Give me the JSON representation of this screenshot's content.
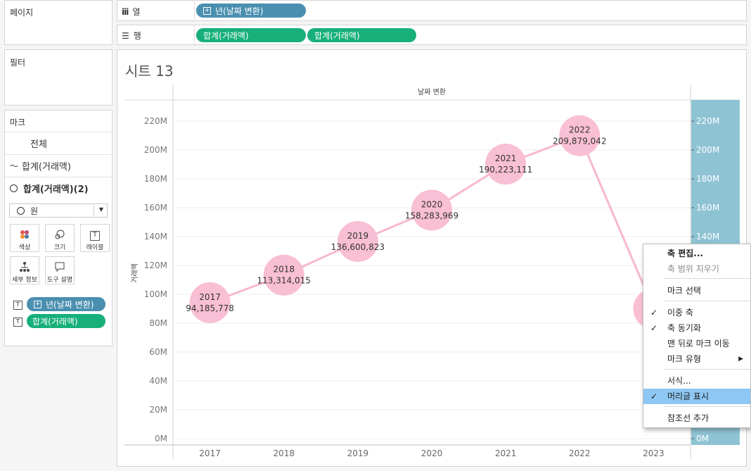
{
  "panels": {
    "pages": "페이지",
    "filters": "필터",
    "marks": "마크"
  },
  "shelves": {
    "columns": {
      "label": "열",
      "icon": "columns-icon",
      "pill": "년(날짜 변환)"
    },
    "rows": {
      "label": "행",
      "icon": "rows-icon",
      "pills": [
        "합계(거래액)",
        "합계(거래액)"
      ]
    }
  },
  "marks": {
    "all": "전체",
    "line_card": "합계(거래액)",
    "circle_card": "합계(거래액)(2)",
    "mark_type": "원",
    "buttons": [
      "색상",
      "크기",
      "레이블",
      "세부 정보",
      "도구 설명"
    ],
    "fields": [
      "년(날짜 변환)",
      "합계(거래액)"
    ]
  },
  "sheet": {
    "title": "시트 13",
    "header": "날짜 변환",
    "ylabel": "거래액"
  },
  "chart_data": {
    "type": "line",
    "categories": [
      "2017",
      "2018",
      "2019",
      "2020",
      "2021",
      "2022",
      "2023"
    ],
    "series": [
      {
        "values": [
          94185778,
          113314015,
          136600823,
          158283969,
          190223111,
          209879042,
          90000000
        ]
      }
    ],
    "data_labels": [
      {
        "year": "2017",
        "value": "94,185,778"
      },
      {
        "year": "2018",
        "value": "113,314,015"
      },
      {
        "year": "2019",
        "value": "136,600,823"
      },
      {
        "year": "2020",
        "value": "158,283,969"
      },
      {
        "year": "2021",
        "value": "190,223,111"
      },
      {
        "year": "2022",
        "value": "209,879,042"
      },
      {
        "year": "2023",
        "value": "90,"
      }
    ],
    "yticks": [
      "0M",
      "20M",
      "40M",
      "60M",
      "80M",
      "100M",
      "120M",
      "140M",
      "160M",
      "180M",
      "200M",
      "220M"
    ],
    "ylim": [
      0,
      230000000
    ],
    "colors": {
      "line": "#f6b8cf",
      "circle": "#f9bfd4",
      "right_axis_band": "#8ec3d4"
    },
    "mark_types": [
      "line",
      "circle"
    ],
    "dual_axis": true
  },
  "context_menu": {
    "items": [
      {
        "label": "축 편집...",
        "checked": false,
        "bold": true
      },
      {
        "label": "축 범위 지우기",
        "disabled": true
      },
      {
        "label": "마크 선택"
      },
      {
        "label": "이중 축",
        "checked": true
      },
      {
        "label": "축 동기화",
        "checked": true
      },
      {
        "label": "맨 뒤로 마크 이동"
      },
      {
        "label": "마크 유형",
        "submenu": true
      },
      {
        "label": "서식..."
      },
      {
        "label": "머리글 표시",
        "checked": true,
        "active": true
      },
      {
        "label": "참조선 추가"
      }
    ]
  }
}
